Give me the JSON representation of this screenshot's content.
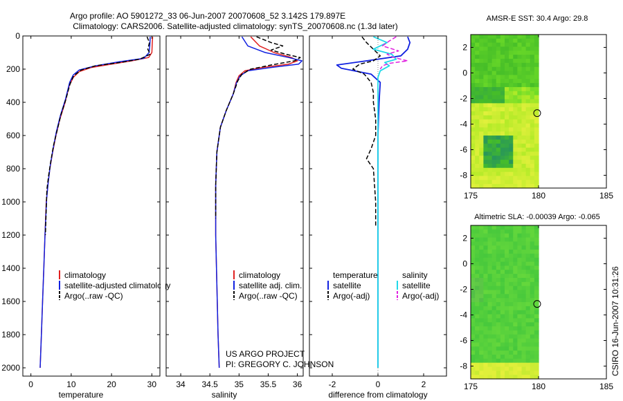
{
  "header": {
    "title_line1": "Argo profile: AO 5901272_33 06-Jun-2007 20070608_52 3.142S 179.897E",
    "title_line2": "Climatology: CARS2006. Satellite-adjusted climatology: synTS_20070608.nc (1.3d later)"
  },
  "credit": {
    "line1": "US ARGO PROJECT",
    "line2": "PI: GREGORY C. JOHNSON",
    "side": "CSIRO 16-Jun-2007 10:31:26"
  },
  "colors": {
    "climatology": "#e02020",
    "satellite": "#1020e0",
    "argo": "#000000",
    "sal_satellite": "#20d8e8",
    "sal_argo": "#e020e0"
  },
  "chart_data": [
    {
      "id": "temperature",
      "type": "line",
      "xlabel": "temperature",
      "xlim": [
        -2,
        32
      ],
      "ylim": [
        2050,
        0
      ],
      "xticks": [
        0,
        10,
        20,
        30
      ],
      "xtick_labels": [
        "0",
        "10",
        "20",
        "30"
      ],
      "yticks": [
        0,
        200,
        400,
        600,
        800,
        1000,
        1200,
        1400,
        1600,
        1800,
        2000
      ],
      "ytick_labels": [
        "0",
        "200",
        "400",
        "600",
        "800",
        "1000",
        "1200",
        "1400",
        "1600",
        "1800",
        "2000"
      ],
      "legend": [
        {
          "label": "climatology",
          "color": "#e02020",
          "dash": "solid"
        },
        {
          "label": "satellite-adjusted climatology",
          "color": "#1020e0",
          "dash": "solid"
        },
        {
          "label": "Argo(..raw -QC)",
          "color": "#000000",
          "dash": "dashed"
        }
      ],
      "series": [
        {
          "name": "climatology",
          "color": "#e02020",
          "dash": "solid",
          "width": 1.5,
          "points": [
            [
              30.2,
              5
            ],
            [
              30.1,
              50
            ],
            [
              30.0,
              100
            ],
            [
              29.2,
              130
            ],
            [
              25,
              150
            ],
            [
              20,
              170
            ],
            [
              15,
              190
            ],
            [
              12,
              215
            ],
            [
              10.5,
              250
            ],
            [
              9.5,
              300
            ],
            [
              8.5,
              400
            ],
            [
              7.2,
              500
            ],
            [
              6.2,
              600
            ],
            [
              5.4,
              700
            ],
            [
              4.7,
              800
            ],
            [
              4.2,
              900
            ],
            [
              3.8,
              1000
            ],
            [
              3.5,
              1200
            ],
            [
              3.2,
              1400
            ],
            [
              2.9,
              1600
            ],
            [
              2.6,
              1800
            ],
            [
              2.3,
              2000
            ]
          ]
        },
        {
          "name": "satellite-adjusted climatology",
          "color": "#1020e0",
          "dash": "solid",
          "width": 1.5,
          "points": [
            [
              29.6,
              5
            ],
            [
              29.5,
              60
            ],
            [
              29.3,
              100
            ],
            [
              28,
              135
            ],
            [
              22,
              155
            ],
            [
              16,
              180
            ],
            [
              12,
              205
            ],
            [
              10.5,
              235
            ],
            [
              9.6,
              280
            ],
            [
              8.6,
              380
            ],
            [
              7.3,
              480
            ],
            [
              6.3,
              580
            ],
            [
              5.5,
              680
            ],
            [
              4.8,
              780
            ],
            [
              4.3,
              880
            ],
            [
              3.9,
              980
            ],
            [
              3.5,
              1200
            ],
            [
              3.2,
              1400
            ],
            [
              2.9,
              1600
            ],
            [
              2.6,
              1800
            ],
            [
              2.3,
              2000
            ]
          ]
        },
        {
          "name": "Argo(..raw -QC)",
          "color": "#000000",
          "dash": "dashed",
          "width": 1.5,
          "points": [
            [
              28.8,
              5
            ],
            [
              29.4,
              40
            ],
            [
              29.0,
              80
            ],
            [
              29.6,
              110
            ],
            [
              27,
              140
            ],
            [
              22,
              160
            ],
            [
              16,
              180
            ],
            [
              12.5,
              205
            ],
            [
              10.6,
              240
            ],
            [
              9.7,
              290
            ],
            [
              8.7,
              380
            ],
            [
              7.4,
              480
            ],
            [
              6.4,
              580
            ],
            [
              5.6,
              660
            ],
            [
              4.9,
              760
            ],
            [
              4.4,
              840
            ],
            [
              4.0,
              920
            ],
            [
              3.9,
              960
            ],
            [
              3.6,
              1200
            ]
          ]
        }
      ]
    },
    {
      "id": "salinity",
      "type": "line",
      "xlabel": "salinity",
      "xlim": [
        33.75,
        36.1
      ],
      "ylim": [
        2050,
        0
      ],
      "xticks": [
        34,
        34.5,
        35,
        35.5,
        36
      ],
      "xtick_labels": [
        "34",
        "34.5",
        "35",
        "35.5",
        "36"
      ],
      "legend": [
        {
          "label": "climatology",
          "color": "#e02020",
          "dash": "solid"
        },
        {
          "label": "satellite adj. clim.",
          "color": "#1020e0",
          "dash": "solid"
        },
        {
          "label": "Argo(..raw -QC)",
          "color": "#000000",
          "dash": "dashed"
        }
      ],
      "series": [
        {
          "name": "climatology",
          "color": "#e02020",
          "dash": "solid",
          "width": 1.5,
          "points": [
            [
              35.2,
              5
            ],
            [
              35.35,
              60
            ],
            [
              35.6,
              100
            ],
            [
              35.9,
              130
            ],
            [
              36.0,
              150
            ],
            [
              35.85,
              170
            ],
            [
              35.4,
              190
            ],
            [
              35.1,
              210
            ],
            [
              35.0,
              240
            ],
            [
              34.95,
              280
            ],
            [
              34.9,
              350
            ],
            [
              34.78,
              450
            ],
            [
              34.68,
              550
            ],
            [
              34.62,
              700
            ],
            [
              34.6,
              900
            ],
            [
              34.6,
              1200
            ],
            [
              34.62,
              1500
            ],
            [
              34.64,
              1800
            ],
            [
              34.66,
              2000
            ]
          ]
        },
        {
          "name": "satellite adj. clim.",
          "color": "#1020e0",
          "dash": "solid",
          "width": 1.5,
          "points": [
            [
              35.05,
              5
            ],
            [
              35.15,
              60
            ],
            [
              35.45,
              100
            ],
            [
              35.85,
              130
            ],
            [
              36.08,
              150
            ],
            [
              36.02,
              170
            ],
            [
              35.55,
              190
            ],
            [
              35.15,
              210
            ],
            [
              35.02,
              240
            ],
            [
              34.96,
              280
            ],
            [
              34.9,
              350
            ],
            [
              34.78,
              450
            ],
            [
              34.68,
              550
            ],
            [
              34.62,
              700
            ],
            [
              34.6,
              900
            ],
            [
              34.6,
              1200
            ],
            [
              34.62,
              1500
            ],
            [
              34.64,
              1800
            ],
            [
              34.66,
              2000
            ]
          ]
        },
        {
          "name": "Argo(..raw -QC)",
          "color": "#000000",
          "dash": "dashed",
          "width": 1.5,
          "points": [
            [
              35.3,
              5
            ],
            [
              35.55,
              40
            ],
            [
              35.75,
              60
            ],
            [
              35.55,
              85
            ],
            [
              35.8,
              110
            ],
            [
              36.05,
              130
            ],
            [
              35.95,
              150
            ],
            [
              35.55,
              175
            ],
            [
              35.2,
              200
            ],
            [
              35.05,
              230
            ],
            [
              34.98,
              270
            ],
            [
              34.9,
              350
            ],
            [
              34.78,
              450
            ],
            [
              34.68,
              550
            ],
            [
              34.62,
              700
            ],
            [
              34.6,
              900
            ],
            [
              34.6,
              1100
            ]
          ]
        }
      ]
    },
    {
      "id": "difference",
      "type": "line",
      "xlabel": "difference from climatology",
      "xlim": [
        -3,
        3
      ],
      "ylim": [
        2050,
        0
      ],
      "xticks": [
        -2,
        0,
        2
      ],
      "xtick_labels": [
        "-2",
        "0",
        "2"
      ],
      "legend_titles": [
        "temperature",
        "salinity"
      ],
      "legend": [
        {
          "label": "satellite",
          "color": "#1020e0",
          "dash": "solid",
          "column": 0
        },
        {
          "label": "Argo(-adj)",
          "color": "#000000",
          "dash": "dashed",
          "column": 0
        },
        {
          "label": "satellite",
          "color": "#20d8e8",
          "dash": "solid",
          "column": 1
        },
        {
          "label": "Argo(-adj)",
          "color": "#e020e0",
          "dash": "dashed",
          "column": 1
        }
      ],
      "series": [
        {
          "name": "temperature satellite",
          "color": "#1020e0",
          "dash": "solid",
          "width": 1.8,
          "points": [
            [
              1.3,
              5
            ],
            [
              1.4,
              40
            ],
            [
              1.3,
              80
            ],
            [
              1.0,
              120
            ],
            [
              -0.5,
              150
            ],
            [
              -1.8,
              175
            ],
            [
              -1.6,
              195
            ],
            [
              -0.3,
              230
            ],
            [
              0.1,
              280
            ],
            [
              0.05,
              400
            ],
            [
              0,
              600
            ],
            [
              0,
              800
            ],
            [
              0,
              1000
            ],
            [
              0,
              1200
            ],
            [
              0,
              1400
            ],
            [
              0,
              1600
            ],
            [
              0,
              1800
            ],
            [
              0,
              2000
            ]
          ]
        },
        {
          "name": "temperature Argo(-adj)",
          "color": "#000000",
          "dash": "dashed",
          "width": 1.5,
          "points": [
            [
              -0.7,
              5
            ],
            [
              -0.5,
              40
            ],
            [
              -0.2,
              80
            ],
            [
              0.1,
              120
            ],
            [
              -0.2,
              150
            ],
            [
              -0.8,
              170
            ],
            [
              -1.1,
              200
            ],
            [
              -0.6,
              230
            ],
            [
              -0.3,
              280
            ],
            [
              -0.2,
              340
            ],
            [
              -0.2,
              400
            ],
            [
              -0.1,
              500
            ],
            [
              -0.1,
              600
            ],
            [
              -0.3,
              680
            ],
            [
              -0.5,
              740
            ],
            [
              -0.2,
              800
            ],
            [
              -0.1,
              1000
            ],
            [
              -0.1,
              1150
            ]
          ]
        },
        {
          "name": "salinity satellite",
          "color": "#20d8e8",
          "dash": "solid",
          "width": 1.8,
          "points": [
            [
              -0.2,
              5
            ],
            [
              0.4,
              40
            ],
            [
              -0.2,
              80
            ],
            [
              0.6,
              110
            ],
            [
              0.8,
              140
            ],
            [
              0.3,
              160
            ],
            [
              0.5,
              180
            ],
            [
              0.1,
              210
            ],
            [
              0,
              250
            ],
            [
              0,
              300
            ],
            [
              0,
              400
            ],
            [
              0,
              600
            ],
            [
              0,
              800
            ],
            [
              0,
              1000
            ],
            [
              0,
              1200
            ],
            [
              0,
              1400
            ],
            [
              0,
              1600
            ],
            [
              0,
              1800
            ],
            [
              0,
              2000
            ]
          ]
        },
        {
          "name": "salinity Argo(-adj)",
          "color": "#e020e0",
          "dash": "dashed",
          "width": 1.5,
          "points": [
            [
              0.8,
              5
            ],
            [
              0.5,
              30
            ],
            [
              0.2,
              60
            ],
            [
              0.9,
              90
            ],
            [
              0.4,
              110
            ],
            [
              0.7,
              130
            ],
            [
              1.3,
              150
            ],
            [
              0.5,
              165
            ],
            [
              0.2,
              180
            ],
            [
              0.1,
              200
            ]
          ]
        }
      ]
    },
    {
      "id": "sst_map",
      "type": "heatmap",
      "title": "AMSR-E SST: 30.4 Argo: 29.8",
      "xlim": [
        175,
        185
      ],
      "ylim": [
        -9,
        3
      ],
      "xticks": [
        175,
        180,
        185
      ],
      "xtick_labels": [
        "175",
        "180",
        "185"
      ],
      "yticks": [
        2,
        0,
        -2,
        -4,
        -6,
        -8
      ],
      "ytick_labels": [
        "2",
        "0",
        "-2",
        "-4",
        "-6",
        "-8"
      ],
      "data_extent": [
        175,
        180
      ],
      "marker": {
        "lon": 179.897,
        "lat": -3.142
      }
    },
    {
      "id": "sla_map",
      "type": "heatmap",
      "title": "Altimetric SLA: -0.00039 Argo: -0.065",
      "xlim": [
        175,
        185
      ],
      "ylim": [
        -9,
        3
      ],
      "xticks": [
        175,
        180,
        185
      ],
      "xtick_labels": [
        "175",
        "180",
        "185"
      ],
      "yticks": [
        2,
        0,
        -2,
        -4,
        -6,
        -8
      ],
      "ytick_labels": [
        "2",
        "0",
        "-2",
        "-4",
        "-6",
        "-8"
      ],
      "data_extent": [
        175,
        180
      ],
      "marker": {
        "lon": 179.897,
        "lat": -3.142
      }
    }
  ]
}
